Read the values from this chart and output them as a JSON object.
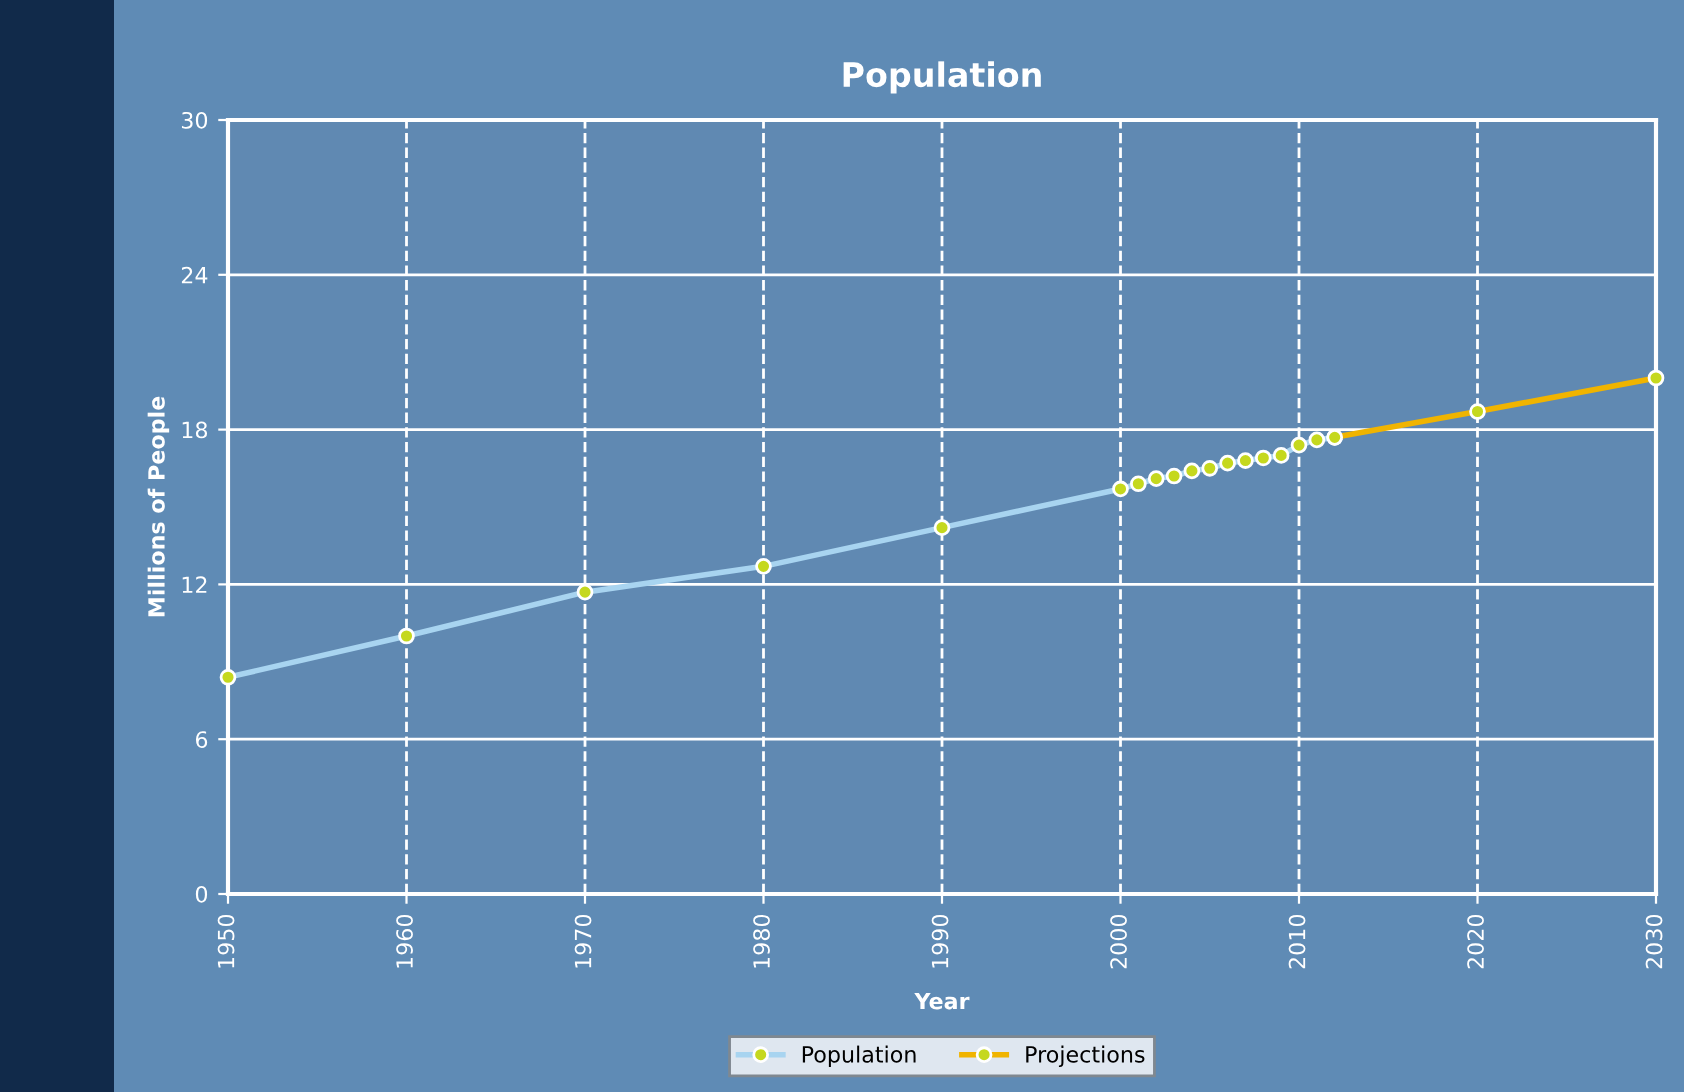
{
  "chart_data": {
    "type": "line",
    "title": "Population",
    "xlabel": "Year",
    "ylabel": "Millions of People",
    "series": [
      {
        "name": "Population",
        "color": "#a8d4f0",
        "x": [
          1950,
          1960,
          1970,
          1980,
          1990,
          2000,
          2001,
          2002,
          2003,
          2004,
          2005,
          2006,
          2007,
          2008,
          2009,
          2010,
          2011,
          2012
        ],
        "values": [
          8.4,
          10.0,
          11.7,
          12.7,
          14.2,
          15.7,
          15.9,
          16.1,
          16.2,
          16.4,
          16.5,
          16.7,
          16.8,
          16.9,
          17.0,
          17.4,
          17.6,
          17.7
        ]
      },
      {
        "name": "Projections",
        "color": "#f0b400",
        "x": [
          2012,
          2020,
          2030
        ],
        "values": [
          17.7,
          18.7,
          20.0
        ]
      }
    ],
    "xlim": [
      1950,
      2030
    ],
    "xticks": [
      1950,
      1960,
      1970,
      1980,
      1990,
      2000,
      2010,
      2020,
      2030
    ],
    "ylim": [
      0,
      30
    ],
    "yticks": [
      0,
      6,
      12,
      18,
      24,
      30
    ],
    "grid": true,
    "legend": "bottom",
    "marker": "circle",
    "line_style": "solid"
  }
}
